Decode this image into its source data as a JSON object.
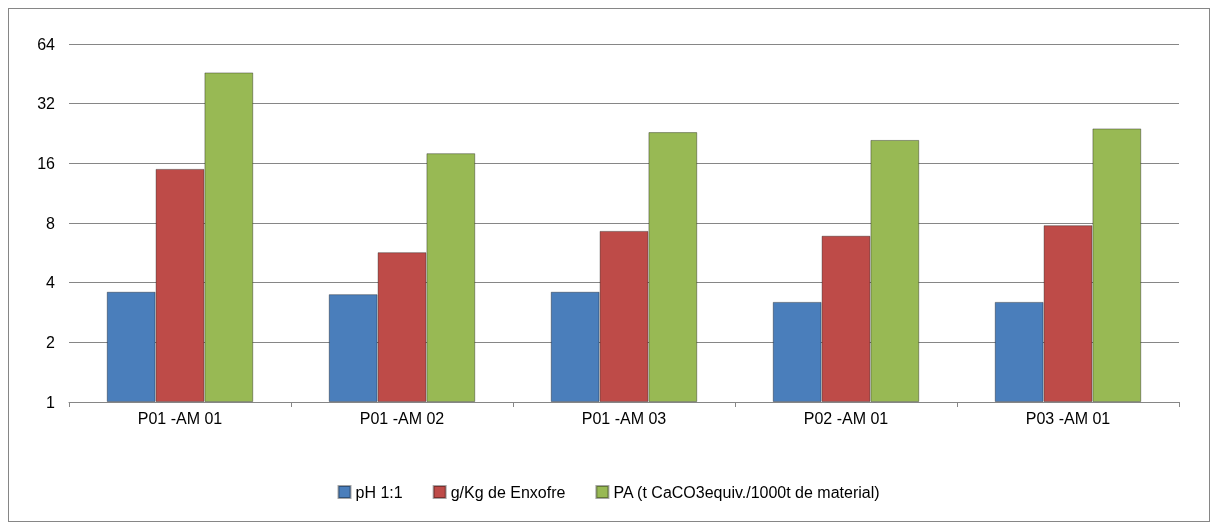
{
  "chart_data": {
    "type": "bar",
    "categories": [
      "P01 -AM 01",
      "P01 -AM 02",
      "P01 -AM 03",
      "P02 -AM 01",
      "P03 -AM 01"
    ],
    "series": [
      {
        "name": "pH 1:1",
        "color": "#4a7ebb",
        "values": [
          3.6,
          3.5,
          3.6,
          3.2,
          3.2
        ]
      },
      {
        "name": "g/Kg de Enxofre",
        "color": "#be4b48",
        "values": [
          15,
          5.7,
          7.3,
          6.9,
          7.8
        ]
      },
      {
        "name": "PA (t CaCO3equiv./1000t de material)",
        "color": "#98b954",
        "values": [
          46,
          18,
          23,
          21,
          24
        ]
      }
    ],
    "log": "y",
    "ylim": [
      1,
      64
    ],
    "yticks": [
      1,
      2,
      4,
      8,
      16,
      32,
      64
    ],
    "grid": "y",
    "legend": "bottom"
  }
}
